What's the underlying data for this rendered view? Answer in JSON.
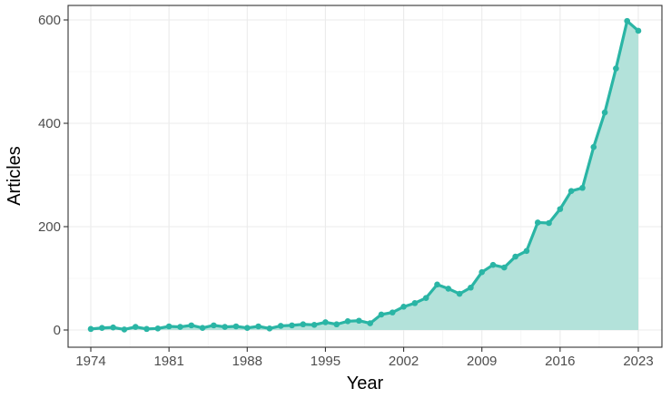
{
  "colors": {
    "line": "#2ab5a5",
    "area": "#b3e2da",
    "grid_major": "#ebebeb",
    "grid_minor": "#f4f4f4",
    "panel_border": "#333333",
    "tick_text": "#4d4d4d",
    "background": "#ffffff"
  },
  "chart_data": {
    "type": "area",
    "xlabel": "Year",
    "ylabel": "Articles",
    "xlim": [
      1974,
      2023
    ],
    "ylim": [
      0,
      600
    ],
    "x_ticks": [
      "1974",
      "1981",
      "1988",
      "1995",
      "2002",
      "2009",
      "2016",
      "2023"
    ],
    "y_ticks": [
      "0",
      "200",
      "400",
      "600"
    ],
    "grid": true,
    "legend": "none",
    "x": [
      1974,
      1975,
      1976,
      1977,
      1978,
      1979,
      1980,
      1981,
      1982,
      1983,
      1984,
      1985,
      1986,
      1987,
      1988,
      1989,
      1990,
      1991,
      1992,
      1993,
      1994,
      1995,
      1996,
      1997,
      1998,
      1999,
      2000,
      2001,
      2002,
      2003,
      2004,
      2005,
      2006,
      2007,
      2008,
      2009,
      2010,
      2011,
      2012,
      2013,
      2014,
      2015,
      2016,
      2017,
      2018,
      2019,
      2020,
      2021,
      2022,
      2023
    ],
    "values": [
      2,
      4,
      5,
      1,
      6,
      2,
      3,
      7,
      6,
      9,
      4,
      9,
      6,
      7,
      4,
      7,
      3,
      8,
      9,
      11,
      10,
      15,
      11,
      17,
      18,
      13,
      30,
      34,
      45,
      52,
      62,
      88,
      80,
      70,
      82,
      112,
      126,
      121,
      142,
      153,
      208,
      207,
      234,
      269,
      275,
      354,
      421,
      506,
      598,
      579
    ]
  }
}
